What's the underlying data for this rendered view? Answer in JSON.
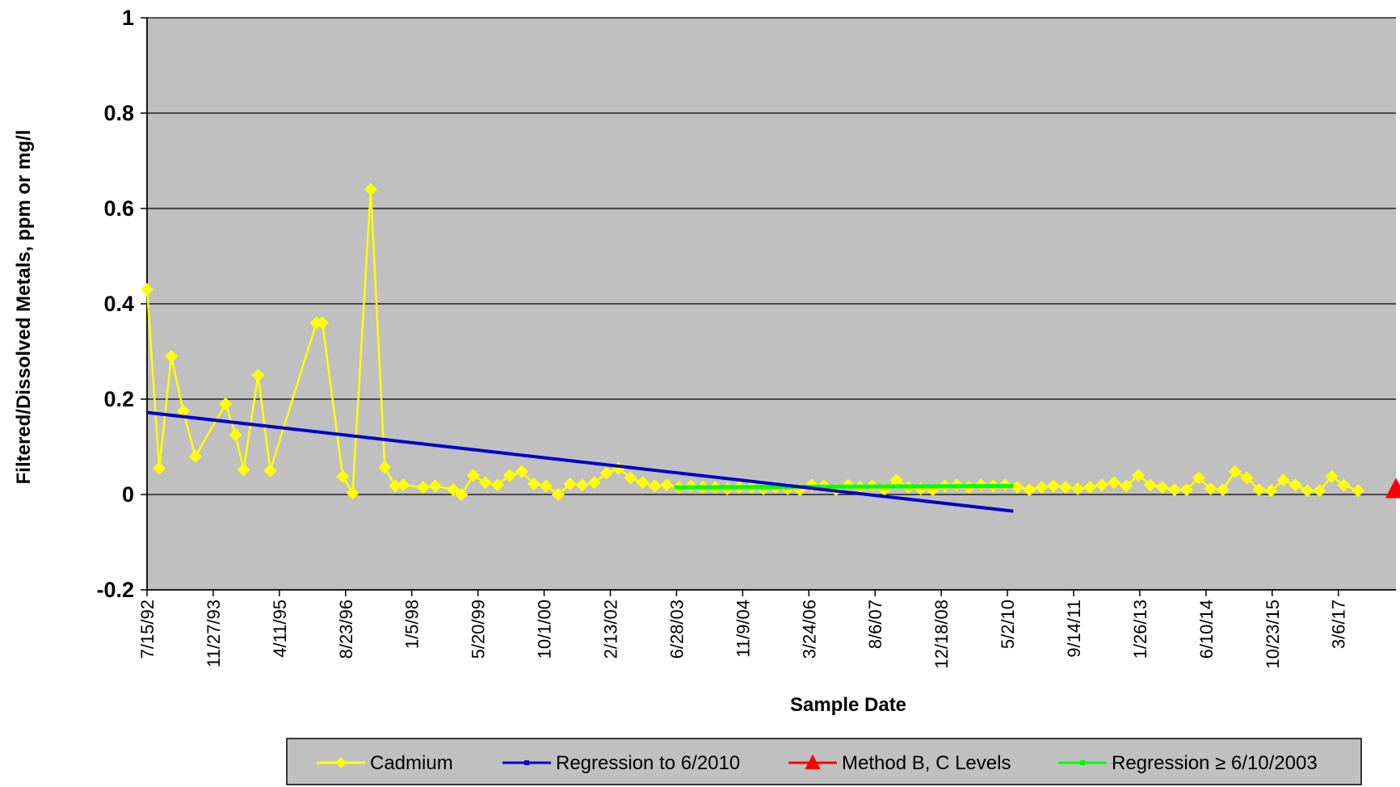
{
  "chart_data": {
    "type": "line",
    "title": "",
    "xlabel": "Sample Date",
    "ylabel": "Filtered/Dissolved Metals, ppm or mg/l",
    "ylim": [
      -0.2,
      1
    ],
    "y_ticks": [
      "1",
      "0.8",
      "0.6",
      "0.4",
      "0.2",
      "0",
      "-0.2"
    ],
    "y_tick_values": [
      1,
      0.8,
      0.6,
      0.4,
      0.2,
      0,
      -0.2
    ],
    "xlim": [
      "1992-07-15",
      "2018-05-15"
    ],
    "x_ticks": [
      "7/15/92",
      "11/27/93",
      "4/11/95",
      "8/23/96",
      "1/5/98",
      "5/20/99",
      "10/1/00",
      "2/13/02",
      "6/28/03",
      "11/9/04",
      "3/24/06",
      "8/6/07",
      "12/18/08",
      "5/2/10",
      "9/14/11",
      "1/26/13",
      "6/10/14",
      "10/23/15",
      "3/6/17"
    ],
    "x_tick_dates": [
      "1992-07-15",
      "1993-11-27",
      "1995-04-11",
      "1996-08-23",
      "1998-01-05",
      "1999-05-20",
      "2000-10-01",
      "2002-02-13",
      "2003-06-28",
      "2004-11-09",
      "2006-03-24",
      "2007-08-06",
      "2008-12-18",
      "2010-05-02",
      "2011-09-14",
      "2013-01-26",
      "2014-06-10",
      "2015-10-23",
      "2017-03-06"
    ],
    "grid": true,
    "legend_position": "bottom",
    "colors": {
      "plot_background": "#c0c0c0",
      "cadmium": "#ffff00",
      "regression_to_2010": "#0000cc",
      "method_levels": "#ff0000",
      "regression_since_2003": "#00ff00",
      "gridline": "#000000",
      "legend_background": "#c0c0c0"
    },
    "series": [
      {
        "name": "Cadmium",
        "marker": "diamond",
        "points": [
          [
            "1992-07-15",
            0.43
          ],
          [
            "1992-10-15",
            0.055
          ],
          [
            "1993-01-15",
            0.29
          ],
          [
            "1993-04-15",
            0.175
          ],
          [
            "1993-07-15",
            0.08
          ],
          [
            "1994-03-01",
            0.19
          ],
          [
            "1994-05-15",
            0.125
          ],
          [
            "1994-07-15",
            0.052
          ],
          [
            "1994-11-01",
            0.25
          ],
          [
            "1995-02-01",
            0.05
          ],
          [
            "1996-01-15",
            0.36
          ],
          [
            "1996-03-01",
            0.36
          ],
          [
            "1996-08-01",
            0.038
          ],
          [
            "1996-10-15",
            0.003
          ],
          [
            "1997-03-01",
            0.64
          ],
          [
            "1997-06-15",
            0.057
          ],
          [
            "1997-09-01",
            0.018
          ],
          [
            "1997-11-01",
            0.02
          ],
          [
            "1998-04-01",
            0.015
          ],
          [
            "1998-07-01",
            0.018
          ],
          [
            "1998-11-15",
            0.01
          ],
          [
            "1999-01-15",
            0.0
          ],
          [
            "1999-04-15",
            0.04
          ],
          [
            "1999-07-15",
            0.025
          ],
          [
            "1999-10-15",
            0.02
          ],
          [
            "2000-01-15",
            0.04
          ],
          [
            "2000-04-15",
            0.048
          ],
          [
            "2000-07-15",
            0.022
          ],
          [
            "2000-10-15",
            0.018
          ],
          [
            "2001-01-15",
            0.0
          ],
          [
            "2001-04-15",
            0.022
          ],
          [
            "2001-07-15",
            0.02
          ],
          [
            "2001-10-15",
            0.025
          ],
          [
            "2002-01-15",
            0.045
          ],
          [
            "2002-04-15",
            0.055
          ],
          [
            "2002-07-15",
            0.035
          ],
          [
            "2002-10-15",
            0.025
          ],
          [
            "2003-01-15",
            0.018
          ],
          [
            "2003-04-15",
            0.02
          ],
          [
            "2003-07-15",
            0.015
          ],
          [
            "2003-10-15",
            0.018
          ],
          [
            "2004-01-15",
            0.015
          ],
          [
            "2004-04-15",
            0.015
          ],
          [
            "2004-07-15",
            0.012
          ],
          [
            "2004-10-15",
            0.015
          ],
          [
            "2005-01-15",
            0.015
          ],
          [
            "2005-04-15",
            0.012
          ],
          [
            "2005-07-15",
            0.015
          ],
          [
            "2005-10-15",
            0.012
          ],
          [
            "2006-01-15",
            0.01
          ],
          [
            "2006-04-15",
            0.02
          ],
          [
            "2006-07-15",
            0.018
          ],
          [
            "2006-10-15",
            0.01
          ],
          [
            "2007-01-15",
            0.02
          ],
          [
            "2007-04-15",
            0.015
          ],
          [
            "2007-07-15",
            0.018
          ],
          [
            "2007-10-15",
            0.01
          ],
          [
            "2008-01-15",
            0.03
          ],
          [
            "2008-04-15",
            0.015
          ],
          [
            "2008-07-15",
            0.012
          ],
          [
            "2008-10-15",
            0.01
          ],
          [
            "2009-01-15",
            0.018
          ],
          [
            "2009-04-15",
            0.02
          ],
          [
            "2009-07-15",
            0.015
          ],
          [
            "2009-10-15",
            0.02
          ],
          [
            "2010-01-15",
            0.018
          ],
          [
            "2010-04-15",
            0.02
          ],
          [
            "2010-07-15",
            0.015
          ],
          [
            "2010-10-15",
            0.01
          ],
          [
            "2011-01-15",
            0.015
          ],
          [
            "2011-04-15",
            0.018
          ],
          [
            "2011-07-15",
            0.015
          ],
          [
            "2011-10-15",
            0.012
          ],
          [
            "2012-01-15",
            0.015
          ],
          [
            "2012-04-15",
            0.02
          ],
          [
            "2012-07-15",
            0.025
          ],
          [
            "2012-10-15",
            0.018
          ],
          [
            "2013-01-15",
            0.04
          ],
          [
            "2013-04-15",
            0.02
          ],
          [
            "2013-07-15",
            0.015
          ],
          [
            "2013-10-15",
            0.01
          ],
          [
            "2014-01-15",
            0.01
          ],
          [
            "2014-04-15",
            0.035
          ],
          [
            "2014-07-15",
            0.012
          ],
          [
            "2014-10-15",
            0.01
          ],
          [
            "2015-01-15",
            0.048
          ],
          [
            "2015-04-15",
            0.035
          ],
          [
            "2015-07-15",
            0.01
          ],
          [
            "2015-10-15",
            0.008
          ],
          [
            "2016-01-15",
            0.03
          ],
          [
            "2016-04-15",
            0.02
          ],
          [
            "2016-07-15",
            0.008
          ],
          [
            "2016-10-15",
            0.008
          ],
          [
            "2017-01-15",
            0.038
          ],
          [
            "2017-04-15",
            0.02
          ],
          [
            "2017-08-01",
            0.008
          ]
        ]
      },
      {
        "name": "Regression to 6/2010",
        "marker": "square",
        "points": [
          [
            "1992-07-15",
            0.172
          ],
          [
            "2010-06-15",
            -0.035
          ]
        ]
      },
      {
        "name": "Method B, C Levels",
        "marker": "triangle",
        "points": [
          [
            "2018-05-15",
            0.011
          ]
        ]
      },
      {
        "name": "Regression ≥ 6/10/2003",
        "marker": "square",
        "points": [
          [
            "2003-06-10",
            0.015
          ],
          [
            "2010-06-15",
            0.018
          ]
        ]
      }
    ]
  }
}
